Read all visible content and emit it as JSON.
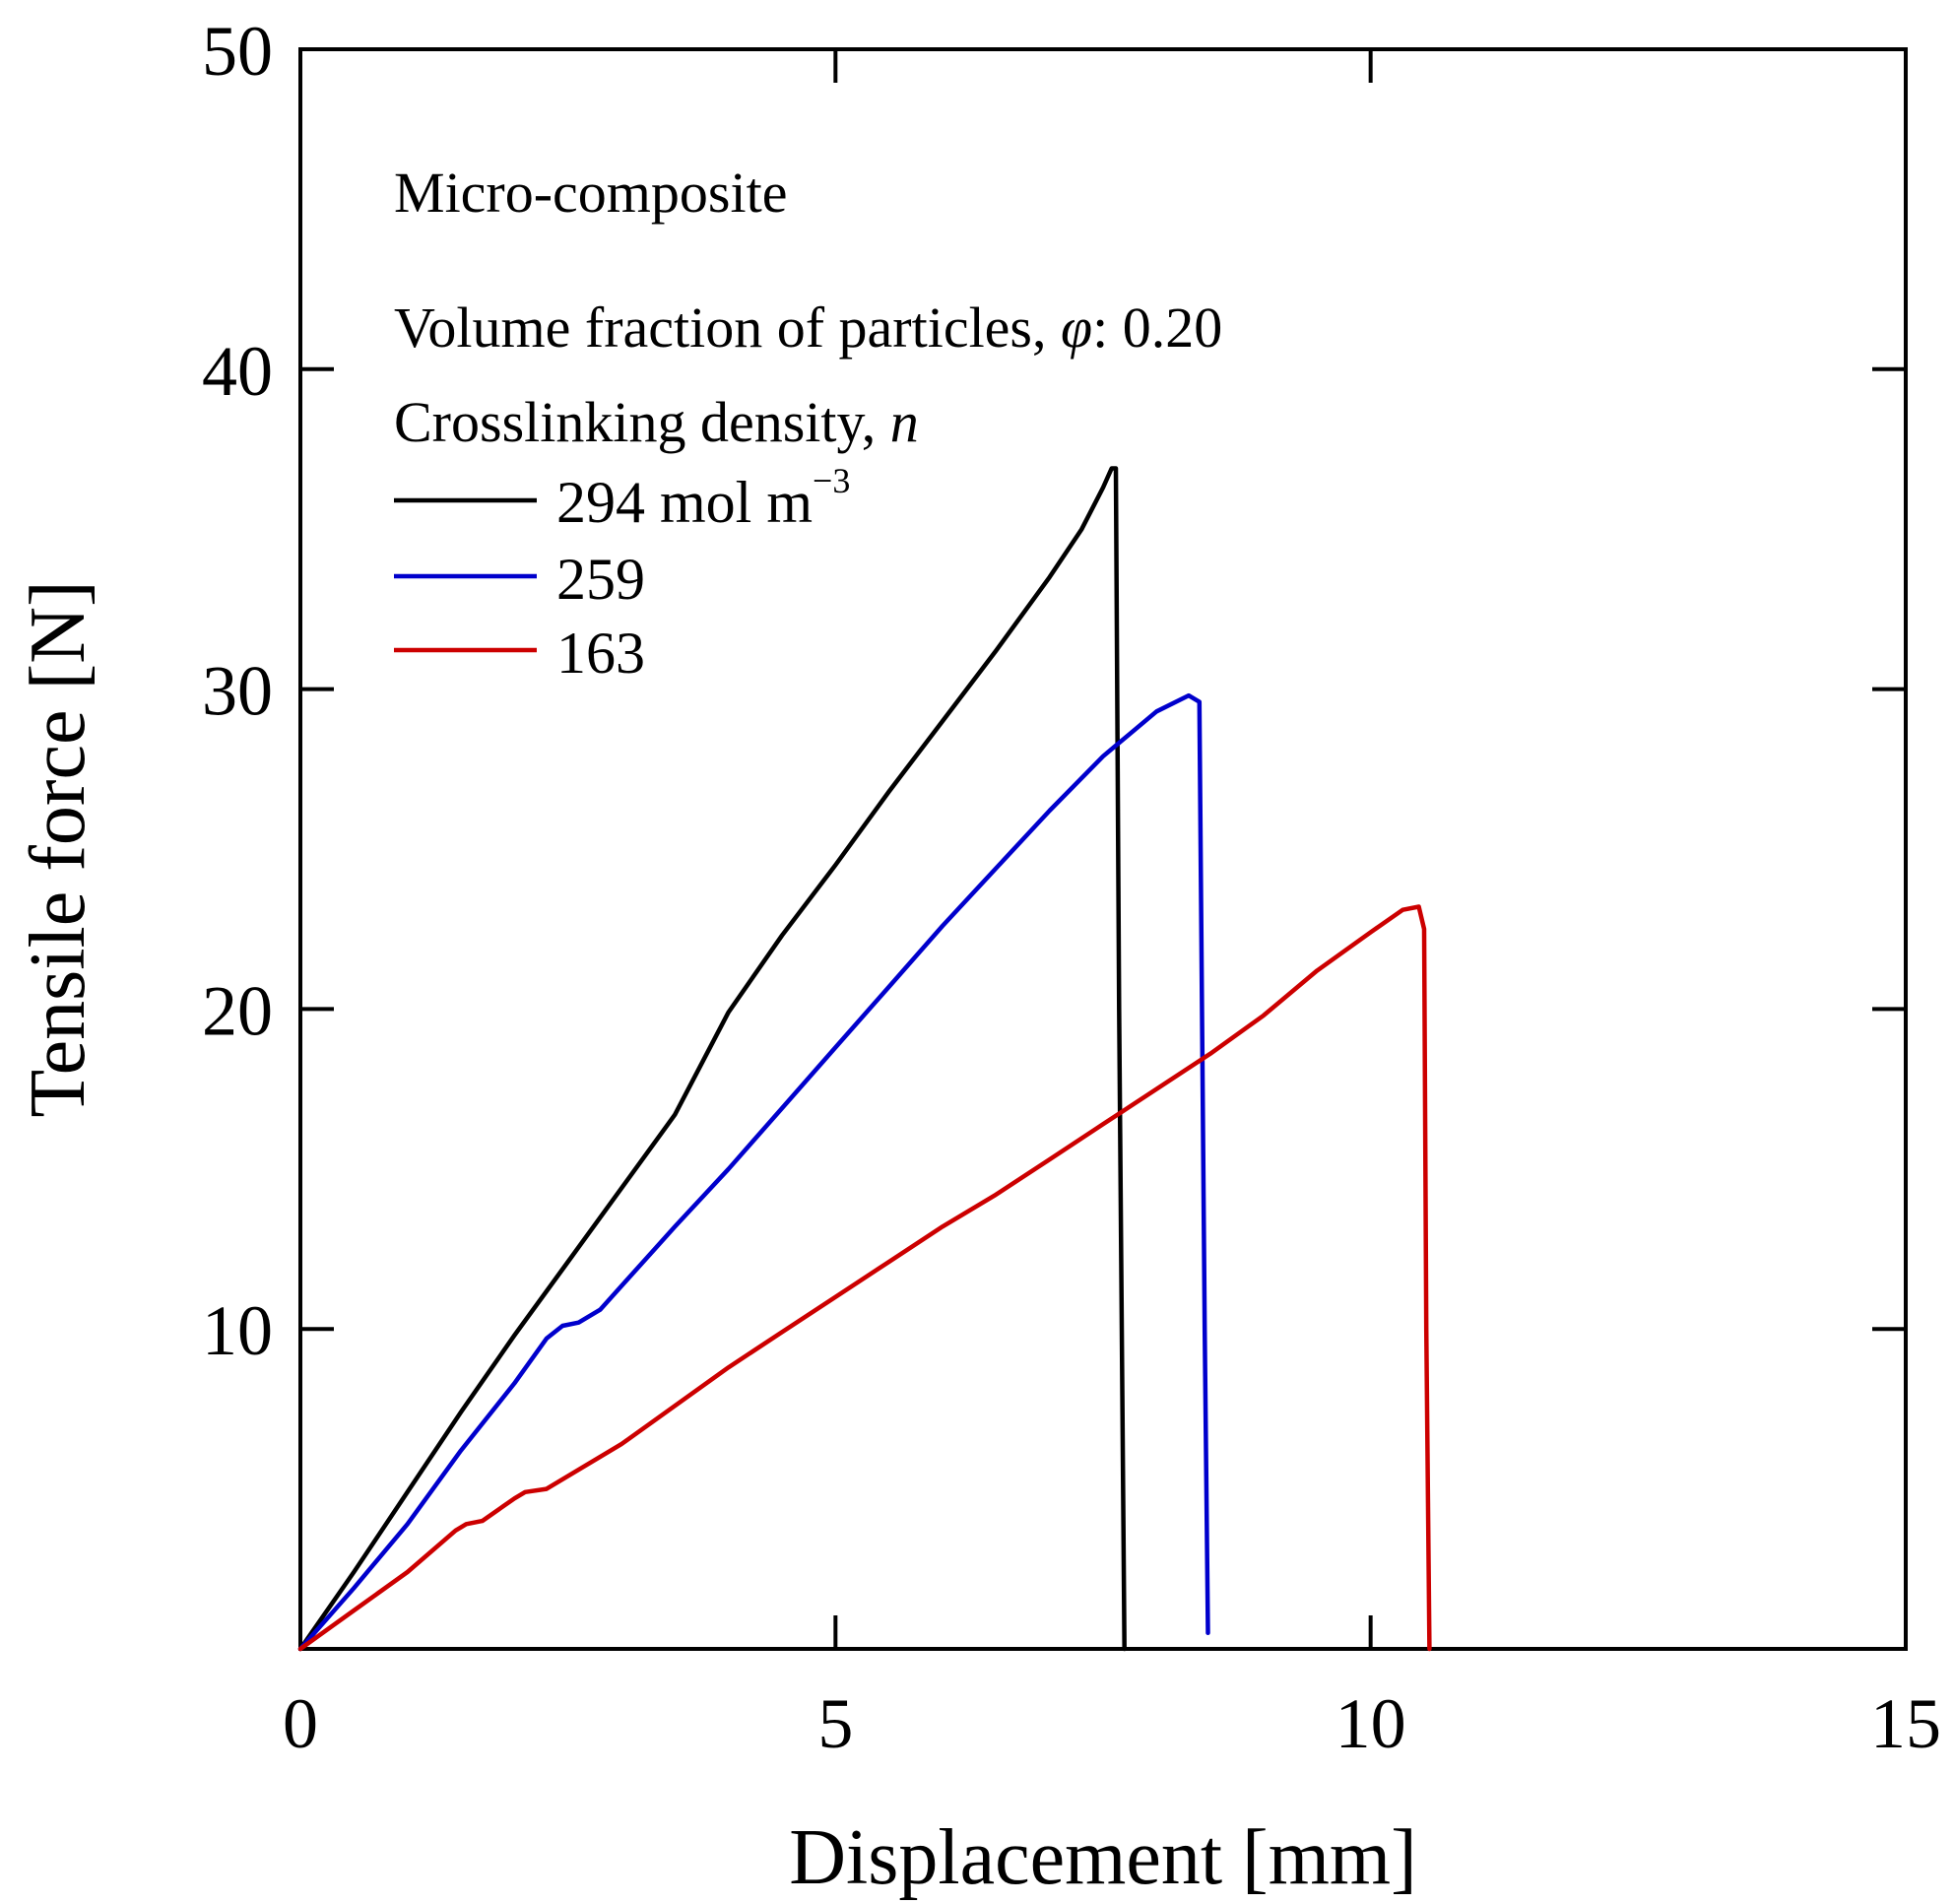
{
  "chart_data": {
    "type": "line",
    "title": "",
    "xlabel": "Displacement [mm]",
    "ylabel": "Tensile force [N]",
    "xlim": [
      0,
      15
    ],
    "ylim": [
      0,
      50
    ],
    "x_ticks": [
      0,
      5,
      10,
      15
    ],
    "y_ticks": [
      10,
      20,
      30,
      40,
      50
    ],
    "x_tick_labels": [
      "0",
      "5",
      "10",
      "15"
    ],
    "y_tick_labels": [
      "10",
      "20",
      "30",
      "40",
      "50"
    ],
    "grid": false,
    "legend_position": "top-left",
    "annotations": {
      "material": "Micro-composite",
      "volume_fraction_label": "Volume fraction of particles, ",
      "volume_fraction_symbol": "φ",
      "volume_fraction_value": ": 0.20",
      "crosslink_label": "Crosslinking density, ",
      "crosslink_symbol": "n"
    },
    "series": [
      {
        "name": "294 mol m",
        "name_superscript": "−3",
        "color": "#000000",
        "points": [
          [
            0,
            0
          ],
          [
            0.5,
            2.4
          ],
          [
            1,
            4.9
          ],
          [
            1.5,
            7.4
          ],
          [
            2,
            9.8
          ],
          [
            2.5,
            12.1
          ],
          [
            3,
            14.4
          ],
          [
            3.5,
            16.7
          ],
          [
            4,
            19.9
          ],
          [
            4.5,
            22.3
          ],
          [
            5,
            24.5
          ],
          [
            5.5,
            26.8
          ],
          [
            6,
            29.0
          ],
          [
            6.5,
            31.2
          ],
          [
            7,
            33.5
          ],
          [
            7.3,
            35.0
          ],
          [
            7.5,
            36.3
          ],
          [
            7.58,
            36.9
          ],
          [
            7.62,
            36.9
          ],
          [
            7.65,
            20.0
          ],
          [
            7.7,
            0
          ]
        ]
      },
      {
        "name": "259",
        "color": "#0000cc",
        "points": [
          [
            0,
            0
          ],
          [
            0.5,
            1.9
          ],
          [
            1,
            3.9
          ],
          [
            1.5,
            6.2
          ],
          [
            2,
            8.3
          ],
          [
            2.3,
            9.7
          ],
          [
            2.45,
            10.1
          ],
          [
            2.6,
            10.2
          ],
          [
            2.8,
            10.6
          ],
          [
            3.5,
            13.2
          ],
          [
            4,
            15.0
          ],
          [
            4.5,
            16.9
          ],
          [
            5,
            18.8
          ],
          [
            5.5,
            20.7
          ],
          [
            6,
            22.6
          ],
          [
            6.5,
            24.4
          ],
          [
            7,
            26.2
          ],
          [
            7.5,
            27.9
          ],
          [
            8,
            29.3
          ],
          [
            8.3,
            29.8
          ],
          [
            8.4,
            29.6
          ],
          [
            8.45,
            10.0
          ],
          [
            8.48,
            0.5
          ]
        ]
      },
      {
        "name": "163",
        "color": "#cc0000",
        "points": [
          [
            0,
            0
          ],
          [
            0.5,
            1.2
          ],
          [
            1,
            2.4
          ],
          [
            1.45,
            3.7
          ],
          [
            1.55,
            3.9
          ],
          [
            1.7,
            4.0
          ],
          [
            2,
            4.7
          ],
          [
            2.1,
            4.9
          ],
          [
            2.3,
            5.0
          ],
          [
            3,
            6.4
          ],
          [
            3.5,
            7.6
          ],
          [
            4,
            8.8
          ],
          [
            4.5,
            9.9
          ],
          [
            5,
            11.0
          ],
          [
            5.5,
            12.1
          ],
          [
            6,
            13.2
          ],
          [
            6.5,
            14.2
          ],
          [
            7,
            15.3
          ],
          [
            7.5,
            16.4
          ],
          [
            8,
            17.5
          ],
          [
            8.5,
            18.6
          ],
          [
            9,
            19.8
          ],
          [
            9.5,
            21.2
          ],
          [
            10,
            22.4
          ],
          [
            10.3,
            23.1
          ],
          [
            10.45,
            23.2
          ],
          [
            10.5,
            22.5
          ],
          [
            10.52,
            10.0
          ],
          [
            10.55,
            0
          ]
        ]
      }
    ]
  }
}
